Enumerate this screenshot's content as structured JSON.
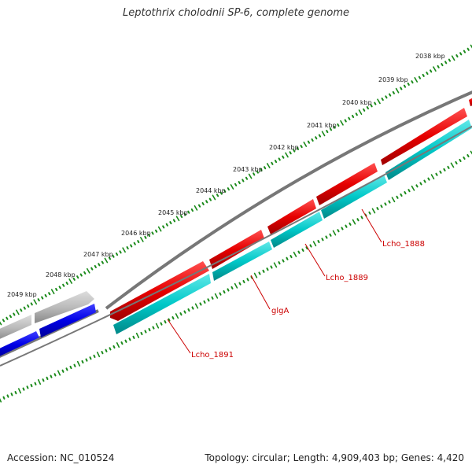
{
  "title": "Leptothrix cholodnii SP-6, complete genome",
  "footer": {
    "accession": "Accession: NC_010524",
    "summary": "Topology: circular; Length: 4,909,403 bp; Genes: 4,420"
  },
  "colors": {
    "tick": "#1a8a1a",
    "backbone": "#777777",
    "forward_gene": "#e60000",
    "reverse_gene": "#00c8c8",
    "left_upper_gene": "#bbbbbb",
    "left_lower_gene": "#0000e6",
    "label": "#cc0000"
  },
  "kbp_labels": [
    "2038 kbp",
    "2039 kbp",
    "2040 kbp",
    "2041 kbp",
    "2042 kbp",
    "2043 kbp",
    "2044 kbp",
    "2045 kbp",
    "2046 kbp",
    "2047 kbp",
    "2048 kbp",
    "2049 kbp"
  ],
  "gene_labels": [
    "Lcho_1888",
    "Lcho_1889",
    "glgA",
    "Lcho_1891"
  ]
}
